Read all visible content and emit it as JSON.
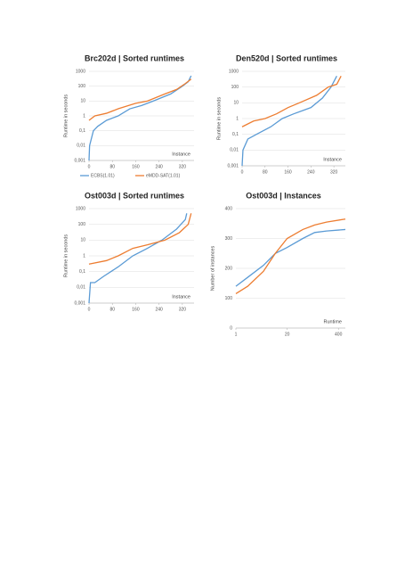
{
  "chart_data": [
    {
      "type": "line",
      "title": "Brc202d | Sorted runtimes",
      "xlabel": "Instance",
      "ylabel": "Runtime in seconds",
      "xlim": [
        0,
        360
      ],
      "xticks": [
        0,
        80,
        160,
        240,
        320
      ],
      "ylog": true,
      "ylim": [
        0.001,
        1000
      ],
      "yticks": [
        {
          "value": 0.001,
          "label": "0,001"
        },
        {
          "value": 0.01,
          "label": "0,01"
        },
        {
          "value": 0.1,
          "label": "0,1"
        },
        1,
        10,
        100,
        1000
      ],
      "grid": true,
      "legend": "bottom",
      "series": [
        {
          "name": "ECBS(1.01)",
          "color": "#5b9bd5",
          "x": [
            0,
            2,
            15,
            30,
            60,
            100,
            140,
            180,
            220,
            280,
            320,
            340,
            350
          ],
          "values": [
            0.001,
            0.01,
            0.1,
            0.2,
            0.5,
            1,
            3,
            5,
            10,
            30,
            100,
            200,
            500
          ]
        },
        {
          "name": "eMDD-SAT(1.01)",
          "color": "#ed7d31",
          "x": [
            0,
            20,
            60,
            100,
            160,
            200,
            260,
            300,
            330,
            350
          ],
          "values": [
            0.5,
            1,
            1.5,
            3,
            7,
            10,
            30,
            60,
            150,
            300
          ]
        }
      ]
    },
    {
      "type": "line",
      "title": "Den520d | Sorted runtimes",
      "xlabel": "Instance",
      "ylabel": "Runtime in seconds",
      "xlim": [
        0,
        360
      ],
      "xticks": [
        0,
        80,
        160,
        240,
        320
      ],
      "ylog": true,
      "ylim": [
        0.001,
        1000
      ],
      "yticks": [
        {
          "value": 0.001,
          "label": "0,001"
        },
        {
          "value": 0.01,
          "label": "0,01"
        },
        {
          "value": 0.1,
          "label": "0,1"
        },
        1,
        10,
        100,
        1000
      ],
      "grid": true,
      "series": [
        {
          "name": "ECBS(1.01)",
          "color": "#5b9bd5",
          "x": [
            0,
            3,
            20,
            50,
            100,
            140,
            180,
            240,
            280,
            310,
            330
          ],
          "values": [
            0.001,
            0.01,
            0.05,
            0.1,
            0.3,
            1,
            2,
            5,
            20,
            100,
            500
          ]
        },
        {
          "name": "eMDD-SAT(1.01)",
          "color": "#ed7d31",
          "x": [
            0,
            40,
            80,
            120,
            160,
            200,
            260,
            300,
            330,
            345
          ],
          "values": [
            0.3,
            0.7,
            1,
            2,
            5,
            10,
            30,
            100,
            150,
            500
          ]
        }
      ]
    },
    {
      "type": "line",
      "title": "Ost003d | Sorted runtimes",
      "xlabel": "Instance",
      "ylabel": "Runtime in seconds",
      "xlim": [
        0,
        360
      ],
      "xticks": [
        0,
        80,
        160,
        240,
        320
      ],
      "ylog": true,
      "ylim": [
        0.001,
        1000
      ],
      "yticks": [
        {
          "value": 0.001,
          "label": "0,001"
        },
        {
          "value": 0.01,
          "label": "0,01"
        },
        {
          "value": 0.1,
          "label": "0,1"
        },
        1,
        10,
        100,
        1000
      ],
      "grid": true,
      "series": [
        {
          "name": "ECBS(1.01)",
          "color": "#5b9bd5",
          "x": [
            0,
            5,
            20,
            50,
            100,
            150,
            200,
            250,
            300,
            330,
            335
          ],
          "values": [
            0.001,
            0.02,
            0.02,
            0.05,
            0.2,
            1,
            3,
            10,
            50,
            200,
            500
          ]
        },
        {
          "name": "eMDD-SAT(1.01)",
          "color": "#ed7d31",
          "x": [
            0,
            60,
            100,
            150,
            200,
            260,
            310,
            340,
            350
          ],
          "values": [
            0.3,
            0.5,
            1,
            3,
            5,
            10,
            30,
            100,
            500
          ]
        }
      ]
    },
    {
      "type": "line",
      "title": "Ost003d | Instances",
      "xlabel": "Runtime",
      "ylabel": "Number of instances",
      "xlog": true,
      "xlim": [
        1,
        600
      ],
      "xticks": [
        1,
        20,
        400
      ],
      "ylim": [
        0,
        400
      ],
      "yticks": [
        0,
        100,
        200,
        300,
        400
      ],
      "grid": true,
      "series": [
        {
          "name": "ECBS(1.01)",
          "color": "#5b9bd5",
          "x": [
            1,
            2,
            5,
            10,
            20,
            50,
            100,
            200,
            600
          ],
          "values": [
            140,
            170,
            210,
            250,
            270,
            300,
            320,
            325,
            330
          ]
        },
        {
          "name": "eMDD-SAT(1.01)",
          "color": "#ed7d31",
          "x": [
            1,
            2,
            5,
            10,
            20,
            50,
            100,
            200,
            600
          ],
          "values": [
            115,
            140,
            190,
            250,
            300,
            330,
            345,
            355,
            365
          ]
        }
      ]
    }
  ]
}
